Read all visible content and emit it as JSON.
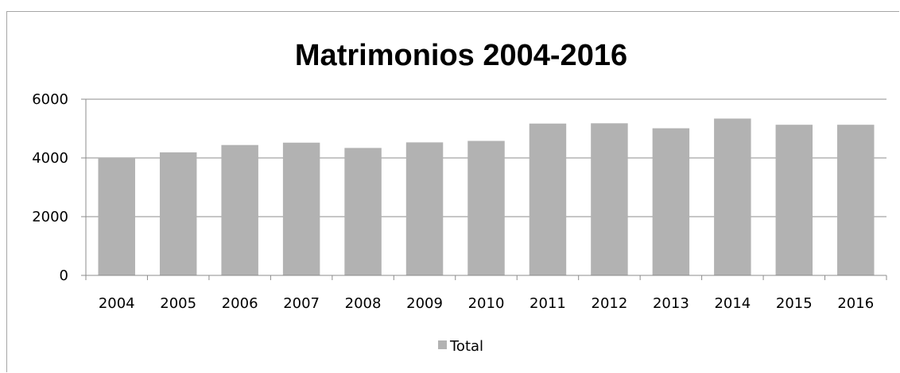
{
  "chart_data": {
    "type": "bar",
    "title": "Matrimonios 2004-2016",
    "xlabel": "",
    "ylabel": "",
    "categories": [
      "2004",
      "2005",
      "2006",
      "2007",
      "2008",
      "2009",
      "2010",
      "2011",
      "2012",
      "2013",
      "2014",
      "2015",
      "2016"
    ],
    "series": [
      {
        "name": "Total",
        "values": [
          4020,
          4190,
          4440,
          4520,
          4340,
          4530,
          4580,
          5170,
          5180,
          5010,
          5340,
          5130,
          5130
        ],
        "color": "#b2b2b2"
      }
    ],
    "ylim": [
      0,
      6000
    ],
    "yticks": [
      0,
      2000,
      4000,
      6000
    ],
    "grid": true,
    "legend_position": "bottom"
  }
}
